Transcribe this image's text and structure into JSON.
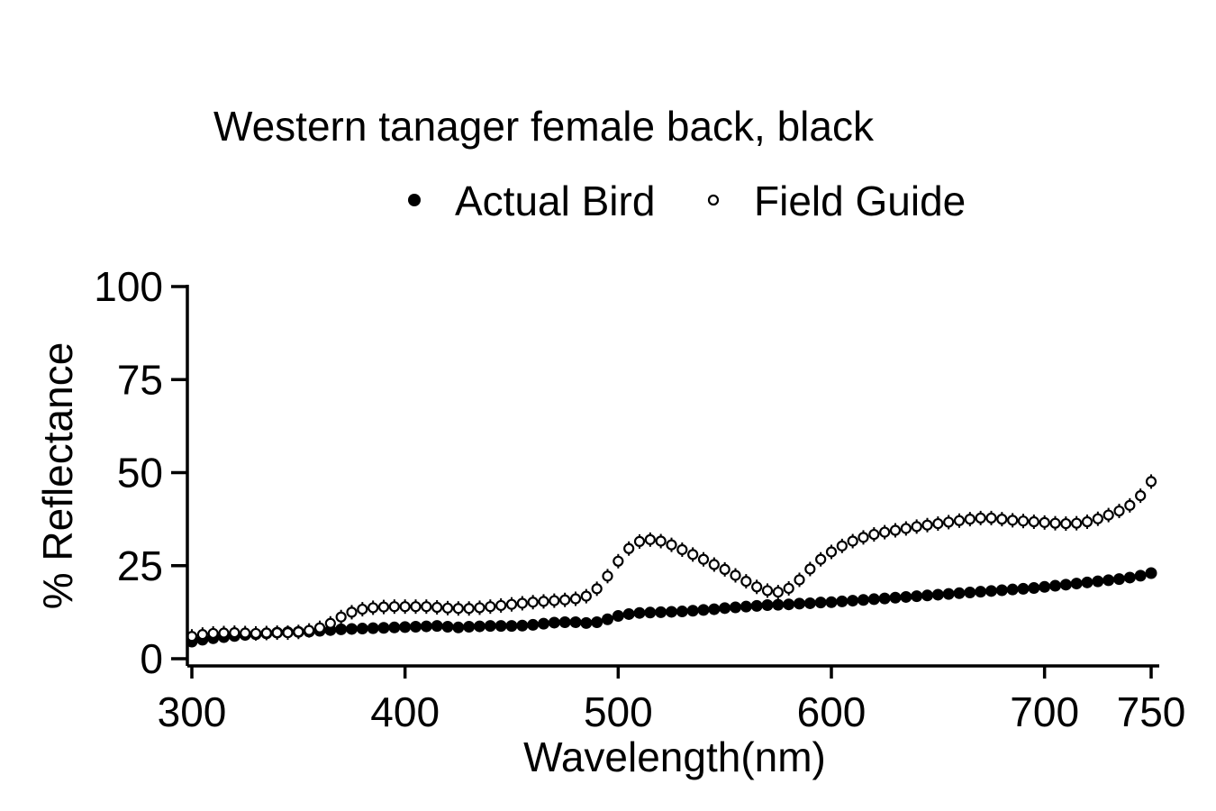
{
  "chart_data": {
    "type": "scatter",
    "title": "Western tanager female back, black",
    "xlabel": "Wavelength(nm)",
    "ylabel": "% Reflectance",
    "xlim": [
      300,
      750
    ],
    "ylim": [
      0,
      100
    ],
    "xticks": [
      300,
      400,
      500,
      600,
      700,
      750
    ],
    "yticks": [
      0,
      25,
      50,
      75,
      100
    ],
    "xtick_labels": [
      "300",
      "400",
      "500",
      "600",
      "700",
      "750"
    ],
    "ytick_labels": [
      "0",
      "25",
      "50",
      "75",
      "100"
    ],
    "grid": false,
    "legend_position": "top",
    "series": [
      {
        "name": "Actual Bird",
        "marker": "filled-circle",
        "color": "#000000",
        "x": [
          300,
          305,
          310,
          315,
          320,
          325,
          330,
          335,
          340,
          345,
          350,
          355,
          360,
          365,
          370,
          375,
          380,
          385,
          390,
          395,
          400,
          405,
          410,
          415,
          420,
          425,
          430,
          435,
          440,
          445,
          450,
          455,
          460,
          465,
          470,
          475,
          480,
          485,
          490,
          495,
          500,
          505,
          510,
          515,
          520,
          525,
          530,
          535,
          540,
          545,
          550,
          555,
          560,
          565,
          570,
          575,
          580,
          585,
          590,
          595,
          600,
          605,
          610,
          615,
          620,
          625,
          630,
          635,
          640,
          645,
          650,
          655,
          660,
          665,
          670,
          675,
          680,
          685,
          690,
          695,
          700,
          705,
          710,
          715,
          720,
          725,
          730,
          735,
          740,
          745,
          750
        ],
        "y": [
          4.6,
          5.1,
          5.5,
          5.8,
          6.1,
          6.4,
          6.6,
          6.8,
          7.0,
          7.1,
          7.2,
          7.3,
          7.5,
          7.7,
          7.9,
          8.0,
          8.1,
          8.2,
          8.3,
          8.4,
          8.5,
          8.6,
          8.7,
          8.8,
          8.6,
          8.4,
          8.6,
          8.7,
          8.8,
          8.8,
          8.8,
          8.9,
          9.1,
          9.4,
          9.7,
          9.8,
          9.8,
          9.6,
          9.8,
          10.6,
          11.5,
          12.0,
          12.3,
          12.4,
          12.5,
          12.6,
          12.7,
          12.9,
          13.1,
          13.3,
          13.6,
          13.8,
          14.0,
          14.2,
          14.4,
          14.5,
          14.6,
          14.8,
          14.9,
          15.1,
          15.2,
          15.4,
          15.6,
          15.8,
          16.0,
          16.2,
          16.4,
          16.6,
          16.8,
          17.0,
          17.2,
          17.4,
          17.6,
          17.8,
          18.0,
          18.2,
          18.4,
          18.6,
          18.8,
          19.0,
          19.3,
          19.6,
          19.9,
          20.2,
          20.5,
          20.8,
          21.1,
          21.4,
          21.8,
          22.3,
          23.0
        ]
      },
      {
        "name": "Field Guide",
        "marker": "open-circle",
        "color": "#000000",
        "x": [
          300,
          305,
          310,
          315,
          320,
          325,
          330,
          335,
          340,
          345,
          350,
          355,
          360,
          365,
          370,
          375,
          380,
          385,
          390,
          395,
          400,
          405,
          410,
          415,
          420,
          425,
          430,
          435,
          440,
          445,
          450,
          455,
          460,
          465,
          470,
          475,
          480,
          485,
          490,
          495,
          500,
          505,
          510,
          515,
          520,
          525,
          530,
          535,
          540,
          545,
          550,
          555,
          560,
          565,
          570,
          575,
          580,
          585,
          590,
          595,
          600,
          605,
          610,
          615,
          620,
          625,
          630,
          635,
          640,
          645,
          650,
          655,
          660,
          665,
          670,
          675,
          680,
          685,
          690,
          695,
          700,
          705,
          710,
          715,
          720,
          725,
          730,
          735,
          740,
          745,
          750
        ],
        "y": [
          6.0,
          6.5,
          6.8,
          6.9,
          7.0,
          6.9,
          6.8,
          6.9,
          7.0,
          7.0,
          7.2,
          7.6,
          8.3,
          9.5,
          11.2,
          12.5,
          13.3,
          13.7,
          13.9,
          14.0,
          14.0,
          14.0,
          14.0,
          13.8,
          13.6,
          13.5,
          13.5,
          13.7,
          14.0,
          14.3,
          14.6,
          14.9,
          15.2,
          15.4,
          15.6,
          15.8,
          16.1,
          16.8,
          18.8,
          22.2,
          26.2,
          29.6,
          31.5,
          32.0,
          31.6,
          30.6,
          29.3,
          28.0,
          26.7,
          25.3,
          24.0,
          22.4,
          20.8,
          19.3,
          18.3,
          17.9,
          18.9,
          21.2,
          24.1,
          26.7,
          28.7,
          30.3,
          31.6,
          32.6,
          33.4,
          34.0,
          34.5,
          35.0,
          35.5,
          35.9,
          36.3,
          36.7,
          37.1,
          37.5,
          37.8,
          37.8,
          37.5,
          37.2,
          37.0,
          36.8,
          36.6,
          36.4,
          36.3,
          36.4,
          36.8,
          37.6,
          38.6,
          39.7,
          41.2,
          43.8,
          47.6
        ]
      }
    ]
  }
}
